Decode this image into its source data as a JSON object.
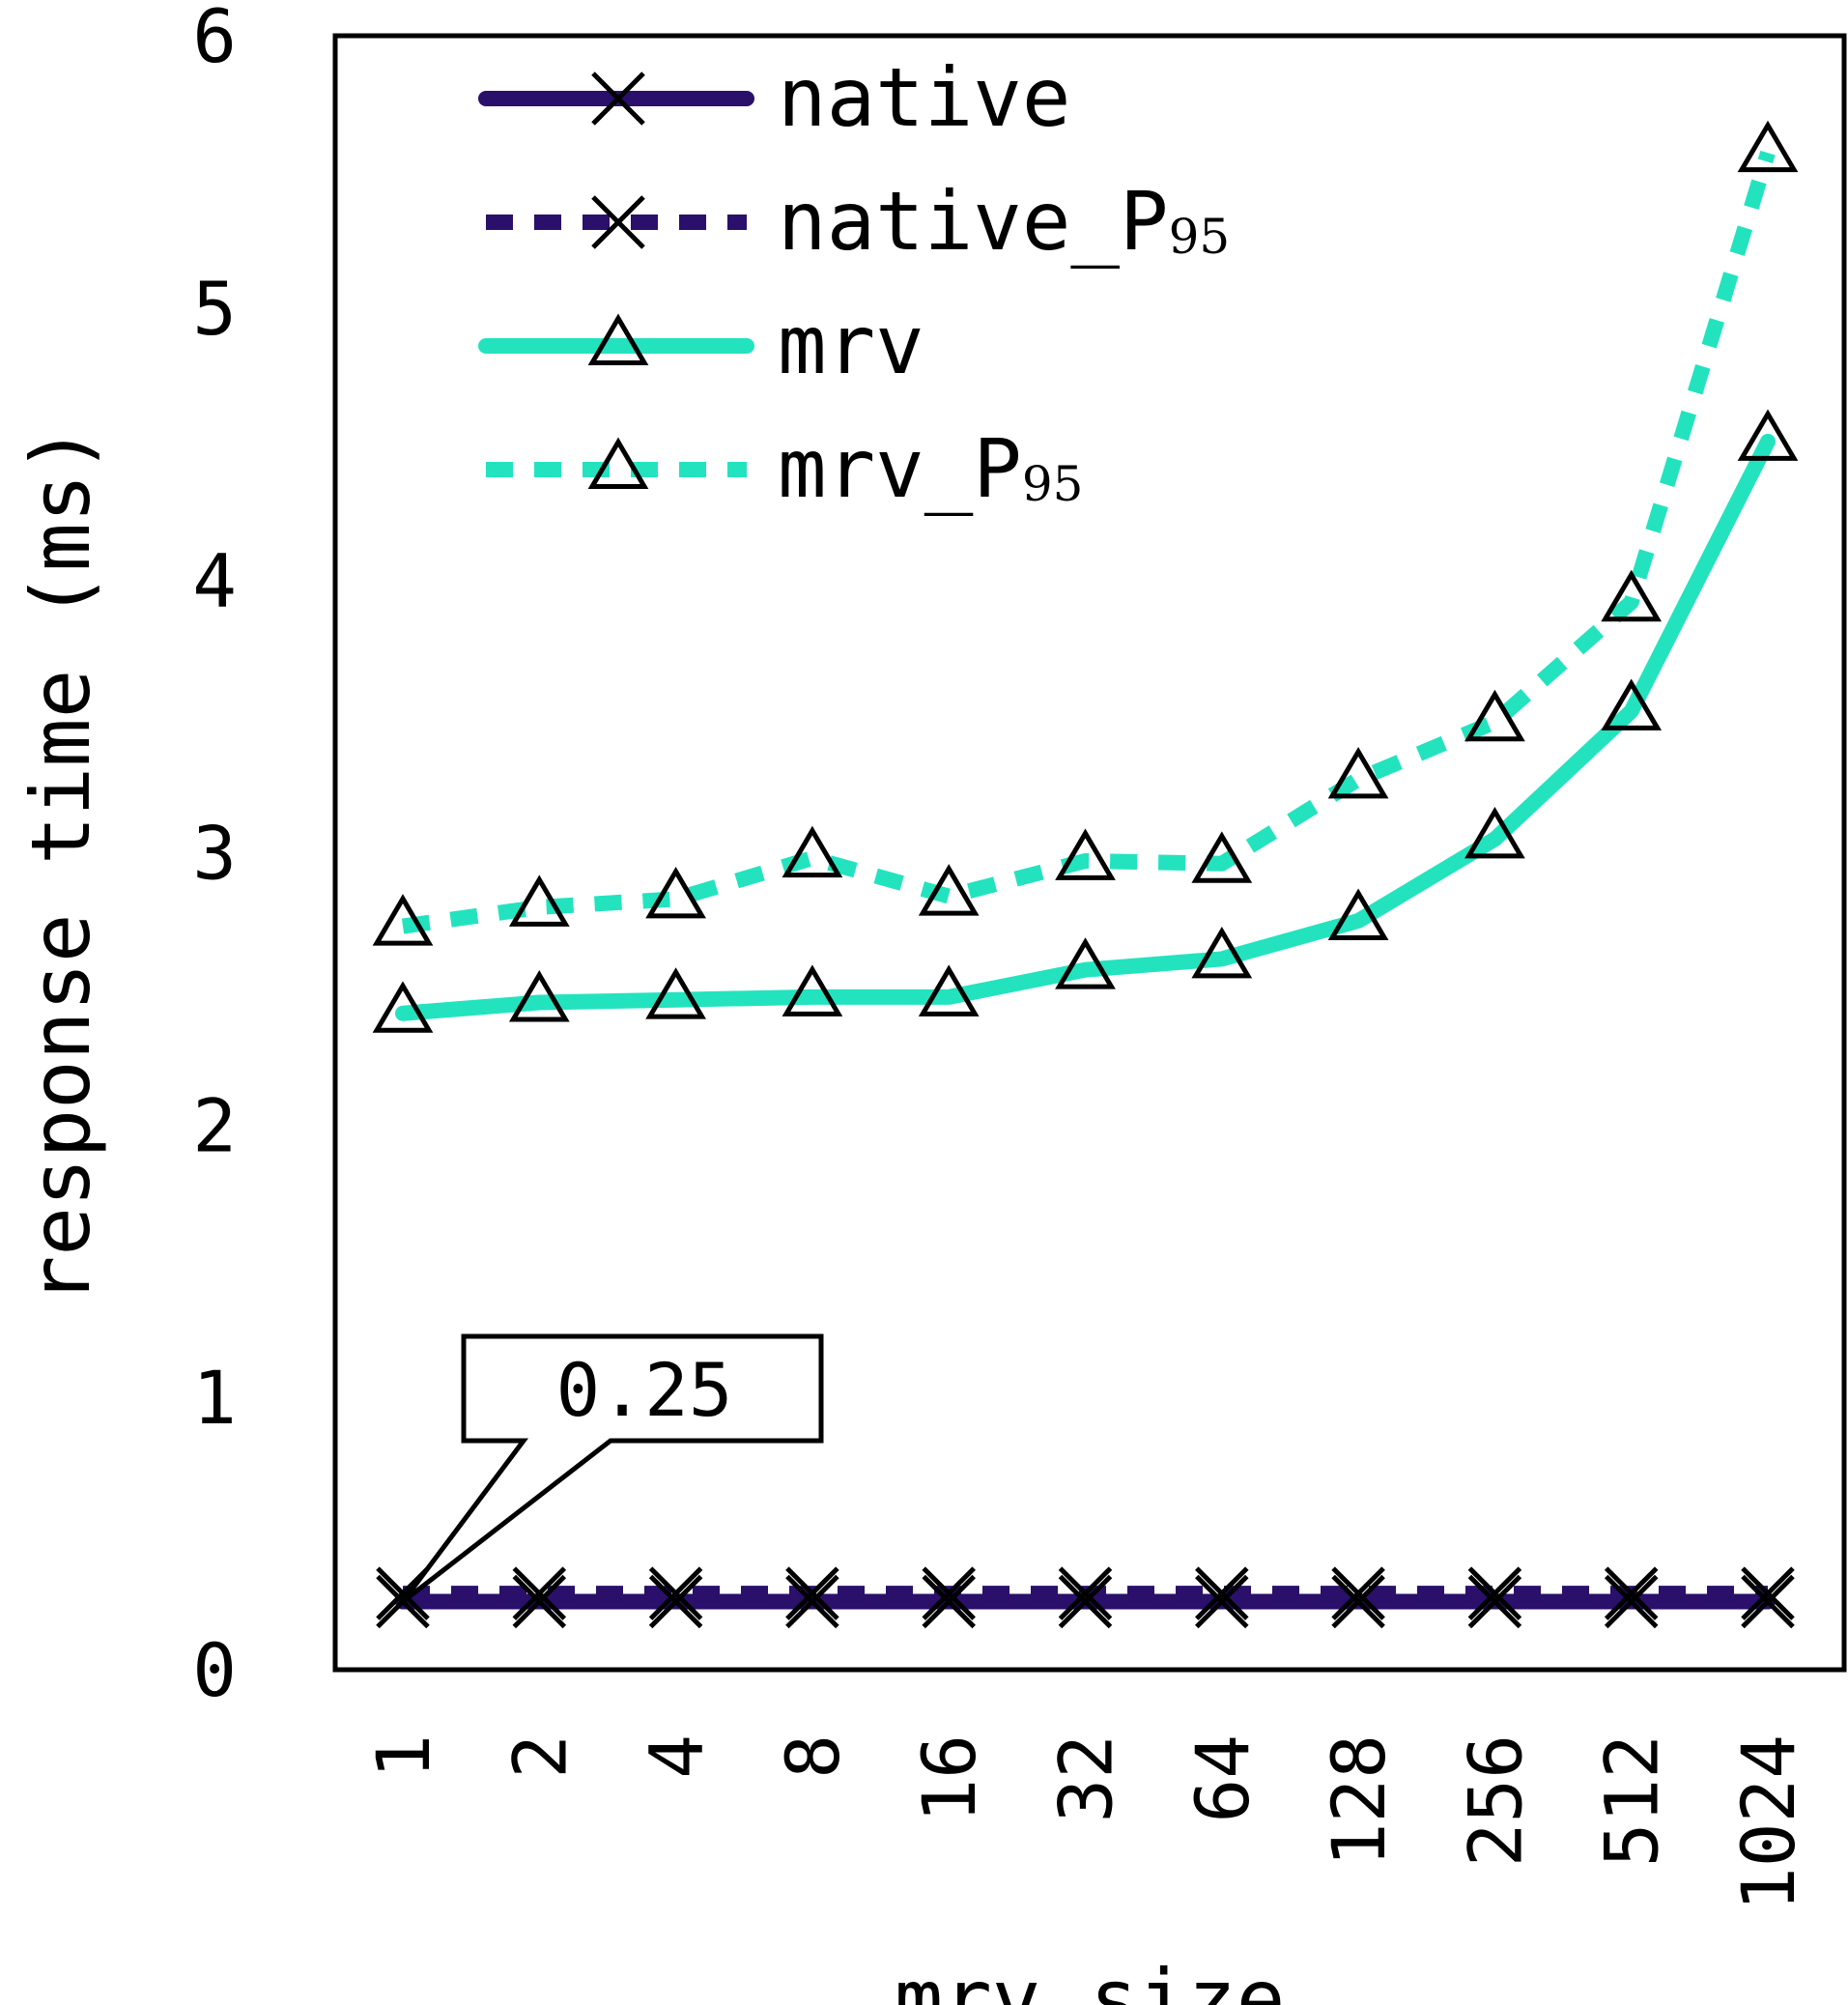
{
  "chart_data": {
    "type": "line",
    "xlabel": "mrv size",
    "ylabel": "response time (ms)",
    "categories": [
      "1",
      "2",
      "4",
      "8",
      "16",
      "32",
      "64",
      "128",
      "256",
      "512",
      "1024"
    ],
    "ylim": [
      0,
      6
    ],
    "yticks": [
      "0",
      "1",
      "2",
      "3",
      "4",
      "5",
      "6"
    ],
    "legend_position": "top-left",
    "grid": false,
    "series": [
      {
        "name": "native",
        "subscript": "",
        "color": "#2a0f6b",
        "dash": "solid",
        "marker": "x",
        "values": [
          0.25,
          0.25,
          0.25,
          0.25,
          0.25,
          0.25,
          0.25,
          0.25,
          0.25,
          0.25,
          0.25
        ]
      },
      {
        "name": "native_P",
        "subscript": "95",
        "color": "#2a0f6b",
        "dash": "dotted",
        "marker": "x",
        "values": [
          0.28,
          0.28,
          0.28,
          0.28,
          0.28,
          0.28,
          0.28,
          0.28,
          0.28,
          0.28,
          0.28
        ]
      },
      {
        "name": "mrv",
        "subscript": "",
        "color": "#23e3bf",
        "dash": "solid",
        "marker": "triangle",
        "values": [
          2.41,
          2.45,
          2.46,
          2.47,
          2.47,
          2.57,
          2.61,
          2.75,
          3.05,
          3.52,
          4.51
        ]
      },
      {
        "name": "mrv_P",
        "subscript": "95",
        "color": "#23e3bf",
        "dash": "dotted",
        "marker": "triangle",
        "values": [
          2.73,
          2.8,
          2.83,
          2.98,
          2.84,
          2.97,
          2.96,
          3.27,
          3.48,
          3.92,
          5.57
        ]
      }
    ],
    "annotations": [
      {
        "text": "0.25",
        "category_index": 0,
        "value": 0.25
      }
    ]
  }
}
